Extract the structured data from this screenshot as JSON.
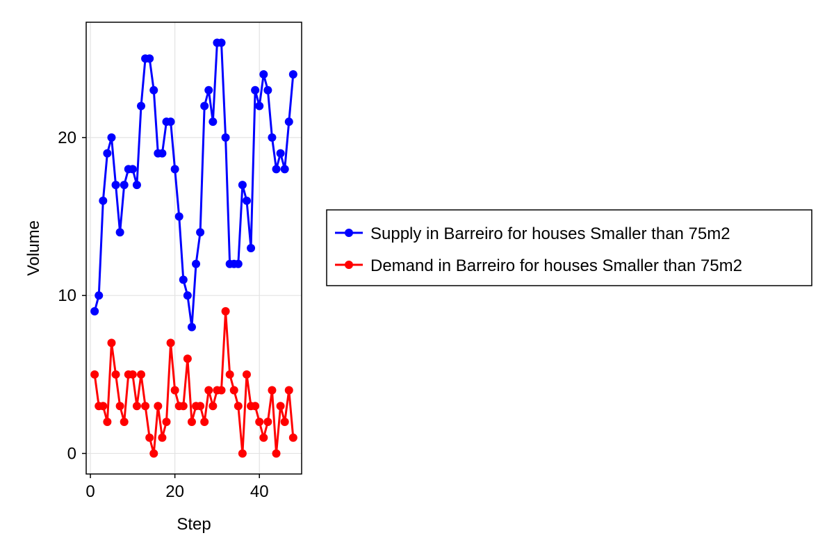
{
  "chart_data": {
    "type": "line",
    "xlabel": "Step",
    "ylabel": "Volume",
    "xlim": [
      -1,
      50
    ],
    "ylim": [
      -1.3,
      27.3
    ],
    "xticks": [
      0,
      20,
      40
    ],
    "yticks": [
      0,
      10,
      20
    ],
    "grid": true,
    "legend_position": "right",
    "x": [
      1,
      2,
      3,
      4,
      5,
      6,
      7,
      8,
      9,
      10,
      11,
      12,
      13,
      14,
      15,
      16,
      17,
      18,
      19,
      20,
      21,
      22,
      23,
      24,
      25,
      26,
      27,
      28,
      29,
      30,
      31,
      32,
      33,
      34,
      35,
      36,
      37,
      38,
      39,
      40,
      41,
      42,
      43,
      44,
      45,
      46,
      47,
      48
    ],
    "series": [
      {
        "name": "Supply in Barreiro for houses Smaller than 75m2",
        "color": "#0000ff",
        "values": [
          9,
          10,
          16,
          19,
          20,
          17,
          14,
          17,
          18,
          18,
          17,
          22,
          25,
          25,
          23,
          19,
          19,
          21,
          21,
          18,
          15,
          11,
          10,
          8,
          12,
          14,
          22,
          23,
          21,
          26,
          26,
          20,
          12,
          12,
          12,
          17,
          16,
          13,
          23,
          22,
          24,
          23,
          20,
          18,
          19,
          18,
          21,
          24
        ]
      },
      {
        "name": "Demand in Barreiro for houses Smaller than 75m2",
        "color": "#ff0000",
        "values": [
          5,
          3,
          3,
          2,
          7,
          5,
          3,
          2,
          5,
          5,
          3,
          5,
          3,
          1,
          0,
          3,
          1,
          2,
          7,
          4,
          3,
          3,
          6,
          2,
          3,
          3,
          2,
          4,
          3,
          4,
          4,
          9,
          5,
          4,
          3,
          0,
          5,
          3,
          3,
          2,
          1,
          2,
          4,
          0,
          3,
          2,
          4,
          1
        ]
      }
    ]
  }
}
